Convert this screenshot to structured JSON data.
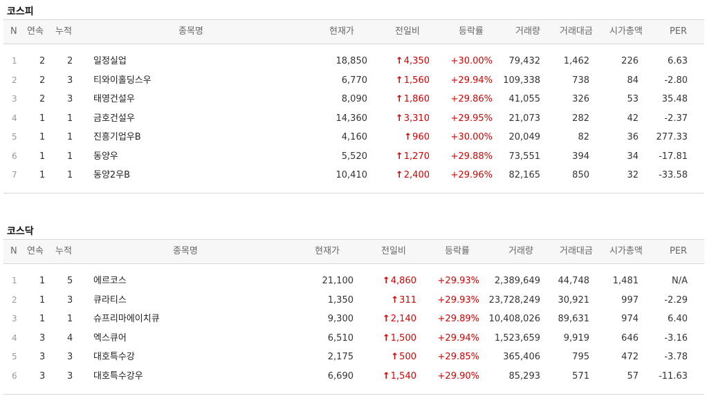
{
  "kospi": {
    "title": "코스피",
    "headers": [
      "N",
      "연속",
      "누적",
      "종목명",
      "현재가",
      "전일비",
      "등락률",
      "거래량",
      "거래대금",
      "시가총액",
      "PER"
    ],
    "rows": [
      {
        "n": "1",
        "cont": "2",
        "cum": "2",
        "name": "일정실업",
        "price": "18,850",
        "change": "4,350",
        "rate": "+30.00%",
        "volume": "79,432",
        "amount": "1,462",
        "cap": "226",
        "per": "6.63"
      },
      {
        "n": "2",
        "cont": "2",
        "cum": "3",
        "name": "티와이홀딩스우",
        "price": "6,770",
        "change": "1,560",
        "rate": "+29.94%",
        "volume": "109,338",
        "amount": "738",
        "cap": "84",
        "per": "-2.80"
      },
      {
        "n": "3",
        "cont": "2",
        "cum": "3",
        "name": "태영건설우",
        "price": "8,090",
        "change": "1,860",
        "rate": "+29.86%",
        "volume": "41,055",
        "amount": "326",
        "cap": "53",
        "per": "35.48"
      },
      {
        "n": "4",
        "cont": "1",
        "cum": "1",
        "name": "금호건설우",
        "price": "14,360",
        "change": "3,310",
        "rate": "+29.95%",
        "volume": "21,073",
        "amount": "282",
        "cap": "42",
        "per": "-2.37"
      },
      {
        "n": "5",
        "cont": "1",
        "cum": "1",
        "name": "진흥기업우B",
        "price": "4,160",
        "change": "960",
        "rate": "+30.00%",
        "volume": "20,049",
        "amount": "82",
        "cap": "36",
        "per": "277.33"
      },
      {
        "n": "6",
        "cont": "1",
        "cum": "1",
        "name": "동양우",
        "price": "5,520",
        "change": "1,270",
        "rate": "+29.88%",
        "volume": "73,551",
        "amount": "394",
        "cap": "34",
        "per": "-17.81"
      },
      {
        "n": "7",
        "cont": "1",
        "cum": "1",
        "name": "동양2우B",
        "price": "10,410",
        "change": "2,400",
        "rate": "+29.96%",
        "volume": "82,165",
        "amount": "850",
        "cap": "32",
        "per": "-33.58"
      }
    ]
  },
  "kosdaq": {
    "title": "코스닥",
    "headers": [
      "N",
      "연속",
      "누적",
      "종목명",
      "현재가",
      "전일비",
      "등락률",
      "거래량",
      "거래대금",
      "시가총액",
      "PER"
    ],
    "rows": [
      {
        "n": "1",
        "cont": "1",
        "cum": "5",
        "name": "에르코스",
        "price": "21,100",
        "change": "4,860",
        "rate": "+29.93%",
        "volume": "2,389,649",
        "amount": "44,748",
        "cap": "1,481",
        "per": "N/A"
      },
      {
        "n": "2",
        "cont": "1",
        "cum": "3",
        "name": "큐라티스",
        "price": "1,350",
        "change": "311",
        "rate": "+29.93%",
        "volume": "23,728,249",
        "amount": "30,921",
        "cap": "997",
        "per": "-2.29"
      },
      {
        "n": "3",
        "cont": "1",
        "cum": "1",
        "name": "슈프리마에이치큐",
        "price": "9,300",
        "change": "2,140",
        "rate": "+29.89%",
        "volume": "10,408,026",
        "amount": "89,631",
        "cap": "974",
        "per": "6.40"
      },
      {
        "n": "4",
        "cont": "3",
        "cum": "4",
        "name": "엑스큐어",
        "price": "6,510",
        "change": "1,500",
        "rate": "+29.94%",
        "volume": "1,523,659",
        "amount": "9,919",
        "cap": "646",
        "per": "-3.16"
      },
      {
        "n": "5",
        "cont": "3",
        "cum": "3",
        "name": "대호특수강",
        "price": "2,175",
        "change": "500",
        "rate": "+29.85%",
        "volume": "365,406",
        "amount": "795",
        "cap": "472",
        "per": "-3.78"
      },
      {
        "n": "6",
        "cont": "3",
        "cum": "3",
        "name": "대호특수강우",
        "price": "6,690",
        "change": "1,540",
        "rate": "+29.90%",
        "volume": "85,293",
        "amount": "571",
        "cap": "57",
        "per": "-11.63"
      }
    ]
  },
  "icons": {
    "up_arrow": "up-arrow-icon"
  },
  "colors": {
    "up": "#d50000",
    "header_bg": "#f7f7f7",
    "border": "#d6d6d6"
  }
}
